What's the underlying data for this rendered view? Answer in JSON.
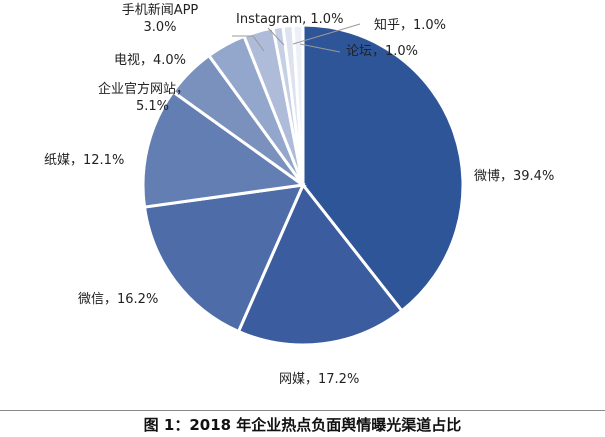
{
  "chart_data": {
    "type": "pie",
    "categories": [
      "微博",
      "网媒",
      "微信",
      "纸媒",
      "企业官方网站",
      "电视",
      "手机新闻APP",
      "Instagram",
      "知乎",
      "论坛"
    ],
    "values": [
      39.4,
      17.2,
      16.2,
      12.1,
      5.1,
      4.0,
      3.0,
      1.0,
      1.0,
      1.0
    ],
    "labels": [
      [
        "微博，39.4%"
      ],
      [
        "网媒，17.2%"
      ],
      [
        "微信，16.2%"
      ],
      [
        "纸媒，12.1%"
      ],
      [
        "企业官方网站，",
        "5.1%"
      ],
      [
        "电视，4.0%"
      ],
      [
        "手机新闻APP",
        "3.0%"
      ],
      [
        "Instagram, 1.0%"
      ],
      [
        "知乎，1.0%"
      ],
      [
        "论坛，1.0%"
      ]
    ],
    "colors": [
      "#2E5597",
      "#3B5C9F",
      "#4E6DA8",
      "#637EB3",
      "#7A91BE",
      "#93A6CB",
      "#AEBCD9",
      "#C6D0E5",
      "#DCE3EF",
      "#EDF1F7"
    ],
    "legend": "none",
    "title": ""
  },
  "caption": "图 1：2018 年企业热点负面舆情曝光渠道占比"
}
